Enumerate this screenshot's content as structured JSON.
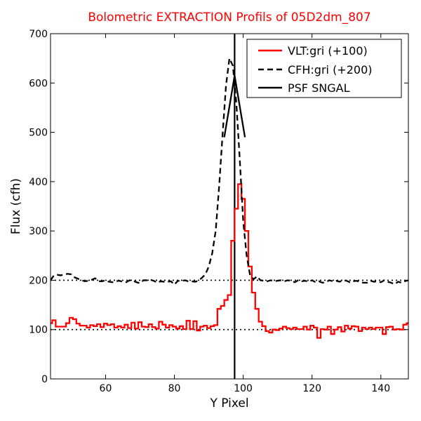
{
  "chart_data": {
    "type": "line",
    "title": "Bolometric EXTRACTION Profils of 05D2dm_807",
    "xlabel": "Y Pixel",
    "ylabel": "Flux (cfh)",
    "xlim": [
      44,
      148
    ],
    "ylim": [
      0,
      700
    ],
    "xticks": [
      "60",
      "80",
      "100",
      "120",
      "140"
    ],
    "yticks": [
      "0",
      "100",
      "200",
      "300",
      "400",
      "500",
      "600",
      "700"
    ],
    "grid": false,
    "legend_position": "top-right",
    "colors": {
      "title": "#ff0000",
      "vlt": "#ff0000",
      "cfh": "#000000",
      "psf": "#000000"
    },
    "series": [
      {
        "name": "VLT:gri (+100)",
        "style": "red-steps",
        "x": [
          44,
          45,
          46,
          47,
          48,
          49,
          50,
          51,
          52,
          53,
          54,
          55,
          56,
          57,
          58,
          59,
          60,
          61,
          62,
          63,
          64,
          65,
          66,
          67,
          68,
          69,
          70,
          71,
          72,
          73,
          74,
          75,
          76,
          77,
          78,
          79,
          80,
          81,
          82,
          83,
          84,
          85,
          86,
          87,
          88,
          89,
          90,
          91,
          92,
          93,
          94,
          95,
          96,
          97,
          98,
          99,
          100,
          101,
          102,
          103,
          104,
          105,
          106,
          107,
          108,
          109,
          110,
          111,
          112,
          113,
          114,
          115,
          116,
          117,
          118,
          119,
          120,
          121,
          122,
          123,
          124,
          125,
          126,
          127,
          128,
          129,
          130,
          131,
          132,
          133,
          134,
          135,
          136,
          137,
          138,
          139,
          140,
          141,
          142,
          143,
          144,
          145,
          146,
          147,
          148
        ],
        "y": [
          113,
          119,
          106,
          106,
          106,
          113,
          124,
          121,
          112,
          108,
          108,
          104,
          109,
          107,
          111,
          105,
          112,
          109,
          111,
          104,
          107,
          104,
          110,
          103,
          114,
          102,
          115,
          106,
          105,
          111,
          105,
          102,
          116,
          110,
          104,
          109,
          106,
          102,
          107,
          101,
          118,
          101,
          117,
          98,
          106,
          108,
          103,
          107,
          109,
          142,
          148,
          160,
          170,
          280,
          345,
          395,
          365,
          300,
          228,
          175,
          142,
          116,
          107,
          97,
          94,
          100,
          99,
          102,
          106,
          103,
          101,
          104,
          101,
          101,
          106,
          100,
          108,
          104,
          83,
          101,
          100,
          106,
          91,
          100,
          105,
          96,
          108,
          102,
          107,
          106,
          97,
          104,
          101,
          104,
          101,
          104,
          104,
          91,
          105,
          106,
          100,
          101,
          100,
          110,
          113
        ]
      },
      {
        "name": "CFH:gri (+200)",
        "style": "black-dashed",
        "x": [
          44,
          45,
          46,
          47,
          48,
          49,
          50,
          51,
          52,
          53,
          54,
          55,
          56,
          57,
          58,
          59,
          60,
          61,
          62,
          63,
          64,
          65,
          66,
          67,
          68,
          69,
          70,
          71,
          72,
          73,
          74,
          75,
          76,
          77,
          78,
          79,
          80,
          81,
          82,
          83,
          84,
          85,
          86,
          87,
          88,
          89,
          90,
          91,
          92,
          93,
          94,
          95,
          96,
          97,
          98,
          99,
          100,
          101,
          102,
          103,
          104,
          105,
          106,
          107,
          108,
          109,
          110,
          111,
          112,
          113,
          114,
          115,
          116,
          117,
          118,
          119,
          120,
          121,
          122,
          123,
          124,
          125,
          126,
          127,
          128,
          129,
          130,
          131,
          132,
          133,
          134,
          135,
          136,
          137,
          138,
          139,
          140,
          141,
          142,
          143,
          144,
          145,
          146,
          147,
          148
        ],
        "y": [
          200,
          210,
          211,
          210,
          212,
          213,
          212,
          206,
          203,
          200,
          198,
          199,
          201,
          204,
          198,
          198,
          200,
          197,
          196,
          198,
          199,
          197,
          196,
          200,
          199,
          196,
          194,
          200,
          200,
          201,
          199,
          195,
          198,
          197,
          197,
          198,
          191,
          199,
          198,
          200,
          198,
          198,
          197,
          199,
          205,
          212,
          228,
          255,
          300,
          390,
          495,
          595,
          650,
          635,
          560,
          445,
          320,
          250,
          210,
          202,
          208,
          200,
          199,
          198,
          200,
          198,
          199,
          200,
          198,
          200,
          199,
          196,
          200,
          198,
          199,
          197,
          200,
          196,
          198,
          195,
          196,
          200,
          198,
          199,
          197,
          200,
          199,
          196,
          198,
          199,
          196,
          195,
          195,
          199,
          197,
          198,
          196,
          200,
          197,
          195,
          192,
          197,
          195,
          198,
          200
        ]
      },
      {
        "name": "PSF SNGAL",
        "style": "black-solid",
        "x": [
          94.5,
          97.5,
          100.5
        ],
        "y": [
          490,
          615,
          490
        ]
      }
    ],
    "reference_lines": [
      {
        "y": 100,
        "style": "dotted"
      },
      {
        "y": 200,
        "style": "dotted"
      },
      {
        "x": 97.5,
        "style": "solid"
      }
    ]
  }
}
